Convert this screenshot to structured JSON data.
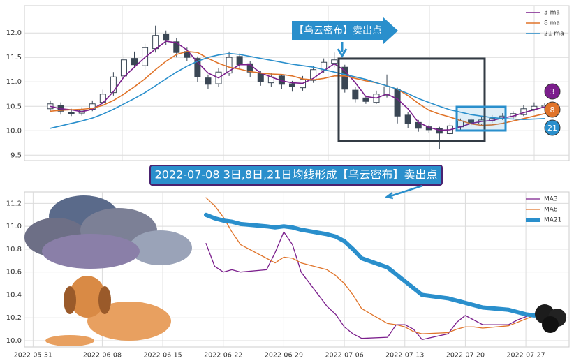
{
  "chart_data": [
    {
      "type": "candlestick",
      "open": [
        10.45,
        10.52,
        10.38,
        10.36,
        10.44,
        10.58,
        10.78,
        11.12,
        11.48,
        11.33,
        11.68,
        11.98,
        11.82,
        11.62,
        11.48,
        11.08,
        10.96,
        11.18,
        11.52,
        11.37,
        11.18,
        10.98,
        11.12,
        10.96,
        10.88,
        11.03,
        11.23,
        11.38,
        11.3,
        10.83,
        10.67,
        10.58,
        10.73,
        10.85,
        10.32,
        10.17,
        10.08,
        10.04,
        9.94,
        10.08,
        10.22,
        10.14,
        10.2,
        10.26,
        10.28,
        10.33,
        10.44,
        10.49
      ],
      "high": [
        10.62,
        10.58,
        10.45,
        10.48,
        10.62,
        10.84,
        11.2,
        11.55,
        11.62,
        11.78,
        12.15,
        12.05,
        11.9,
        11.7,
        11.52,
        11.15,
        11.28,
        11.62,
        11.58,
        11.42,
        11.22,
        11.18,
        11.16,
        11.02,
        11.12,
        11.32,
        11.48,
        11.6,
        11.35,
        10.9,
        10.72,
        10.82,
        11.15,
        10.88,
        10.38,
        10.22,
        10.12,
        10.08,
        10.16,
        10.25,
        10.26,
        10.28,
        10.32,
        10.36,
        10.4,
        10.52,
        10.58,
        10.56
      ],
      "low": [
        10.38,
        10.33,
        10.3,
        10.31,
        10.4,
        10.52,
        10.72,
        11.05,
        11.28,
        11.25,
        11.6,
        11.75,
        11.5,
        11.42,
        11.0,
        10.85,
        10.9,
        11.12,
        11.25,
        11.1,
        10.92,
        10.9,
        10.85,
        10.8,
        10.82,
        10.98,
        11.18,
        11.3,
        10.78,
        10.58,
        10.55,
        10.55,
        10.68,
        10.15,
        10.05,
        9.98,
        9.96,
        9.62,
        9.9,
        10.02,
        10.1,
        10.1,
        10.16,
        10.22,
        10.24,
        10.3,
        10.4,
        10.45
      ],
      "close": [
        10.55,
        10.4,
        10.35,
        10.42,
        10.55,
        10.75,
        11.1,
        11.45,
        11.35,
        11.7,
        11.95,
        11.85,
        11.6,
        11.5,
        11.1,
        10.95,
        11.2,
        11.5,
        11.35,
        11.2,
        11.0,
        11.1,
        10.95,
        10.9,
        11.05,
        11.25,
        11.4,
        11.45,
        10.85,
        10.65,
        10.6,
        10.75,
        10.9,
        10.3,
        10.15,
        10.05,
        10.02,
        9.95,
        10.1,
        10.2,
        10.15,
        10.22,
        10.25,
        10.3,
        10.35,
        10.45,
        10.5,
        10.52
      ],
      "series": [
        {
          "name": "3 ma",
          "color": "#7b1e8c",
          "values": [
            10.5,
            10.45,
            10.43,
            10.39,
            10.44,
            10.57,
            10.8,
            11.1,
            11.3,
            11.5,
            11.67,
            11.83,
            11.8,
            11.65,
            11.4,
            11.18,
            11.08,
            11.22,
            11.35,
            11.35,
            11.18,
            11.1,
            11.02,
            10.98,
            10.97,
            11.07,
            11.23,
            11.37,
            11.23,
            10.98,
            10.7,
            10.67,
            10.75,
            10.65,
            10.45,
            10.17,
            10.07,
            10.01,
            10.02,
            10.08,
            10.15,
            10.19,
            10.21,
            10.26,
            10.3,
            10.37,
            10.43,
            10.49
          ]
        },
        {
          "name": "8 ma",
          "color": "#e0742a",
          "values": [
            10.4,
            10.42,
            10.43,
            10.44,
            10.46,
            10.52,
            10.62,
            10.75,
            10.9,
            11.06,
            11.25,
            11.42,
            11.56,
            11.62,
            11.6,
            11.48,
            11.38,
            11.3,
            11.26,
            11.21,
            11.18,
            11.16,
            11.15,
            11.12,
            11.06,
            11.04,
            11.07,
            11.12,
            11.12,
            11.07,
            11.02,
            10.98,
            10.92,
            10.85,
            10.72,
            10.56,
            10.42,
            10.34,
            10.28,
            10.21,
            10.14,
            10.11,
            10.12,
            10.15,
            10.2,
            10.25,
            10.3,
            10.35
          ]
        },
        {
          "name": "21 ma",
          "color": "#2a8fcc",
          "values": [
            10.05,
            10.1,
            10.15,
            10.2,
            10.26,
            10.34,
            10.44,
            10.55,
            10.66,
            10.78,
            10.92,
            11.06,
            11.2,
            11.32,
            11.42,
            11.5,
            11.55,
            11.58,
            11.56,
            11.52,
            11.48,
            11.44,
            11.4,
            11.36,
            11.33,
            11.3,
            11.25,
            11.2,
            11.15,
            11.1,
            11.05,
            10.98,
            10.92,
            10.85,
            10.76,
            10.66,
            10.58,
            10.5,
            10.43,
            10.38,
            10.33,
            10.3,
            10.27,
            10.25,
            10.24,
            10.23,
            10.24,
            10.25
          ]
        }
      ],
      "ylim": [
        9.39,
        12.56
      ],
      "yticks": [
        9.5,
        {
          "value": 10,
          "label": "10.0"
        },
        10.5,
        {
          "value": 11,
          "label": "11.0"
        },
        11.5,
        {
          "value": 12,
          "label": "12.0"
        }
      ],
      "grid": true,
      "legend": "upper right",
      "callout": "【乌云密布】卖出点",
      "badges": [
        "3",
        "8",
        "21"
      ]
    },
    {
      "type": "line",
      "x": [
        "2022-06-20",
        "2022-06-21",
        "2022-06-22",
        "2022-06-23",
        "2022-06-24",
        "2022-06-27",
        "2022-06-28",
        "2022-06-29",
        "2022-06-30",
        "2022-07-01",
        "2022-07-04",
        "2022-07-05",
        "2022-07-06",
        "2022-07-07",
        "2022-07-08",
        "2022-07-11",
        "2022-07-12",
        "2022-07-13",
        "2022-07-14",
        "2022-07-15",
        "2022-07-18",
        "2022-07-19",
        "2022-07-20",
        "2022-07-21",
        "2022-07-22",
        "2022-07-25",
        "2022-07-26",
        "2022-07-27",
        "2022-07-28"
      ],
      "series": [
        {
          "name": "MA3",
          "color": "#7b1e8c",
          "line_width": 1.3,
          "values": [
            10.85,
            10.65,
            10.6,
            10.62,
            10.6,
            10.62,
            10.77,
            10.95,
            10.84,
            10.6,
            10.3,
            10.23,
            10.12,
            10.06,
            10.02,
            10.03,
            10.14,
            10.14,
            10.1,
            10.01,
            10.06,
            10.16,
            10.22,
            10.18,
            10.14,
            10.14,
            10.18,
            10.21,
            10.24
          ]
        },
        {
          "name": "MA8",
          "color": "#e0742a",
          "line_width": 1.3,
          "values": [
            11.25,
            11.18,
            11.08,
            10.95,
            10.84,
            10.72,
            10.68,
            10.73,
            10.72,
            10.68,
            10.62,
            10.57,
            10.5,
            10.4,
            10.28,
            10.15,
            10.14,
            10.12,
            10.08,
            10.06,
            10.07,
            10.1,
            10.12,
            10.12,
            10.11,
            10.13,
            10.16,
            10.19,
            10.22
          ]
        },
        {
          "name": "MA21",
          "color": "#2a8fcc",
          "line_width": 6,
          "values": [
            11.1,
            11.07,
            11.05,
            11.04,
            11.02,
            11.0,
            10.99,
            11.0,
            10.99,
            10.97,
            10.93,
            10.91,
            10.87,
            10.8,
            10.72,
            10.64,
            10.58,
            10.52,
            10.46,
            10.4,
            10.37,
            10.35,
            10.33,
            10.31,
            10.29,
            10.27,
            10.25,
            10.23,
            10.22
          ]
        }
      ],
      "xlim": [
        "2022-05-30",
        "2022-08-01"
      ],
      "xticks": [
        "2022-05-31",
        "2022-06-08",
        "2022-06-15",
        "2022-06-22",
        "2022-06-29",
        "2022-07-06",
        "2022-07-13",
        "2022-07-20",
        "2022-07-27"
      ],
      "ylim": [
        9.945,
        11.3
      ],
      "yticks": [
        {
          "value": 10,
          "label": "10.0"
        },
        10.2,
        10.4,
        10.6,
        10.8,
        {
          "value": 11,
          "label": "11.0"
        },
        11.2
      ],
      "grid": true,
      "legend": "upper right",
      "banner": "2022-07-08 3日,8日,21日均线形成【乌云密布】卖出点"
    }
  ]
}
